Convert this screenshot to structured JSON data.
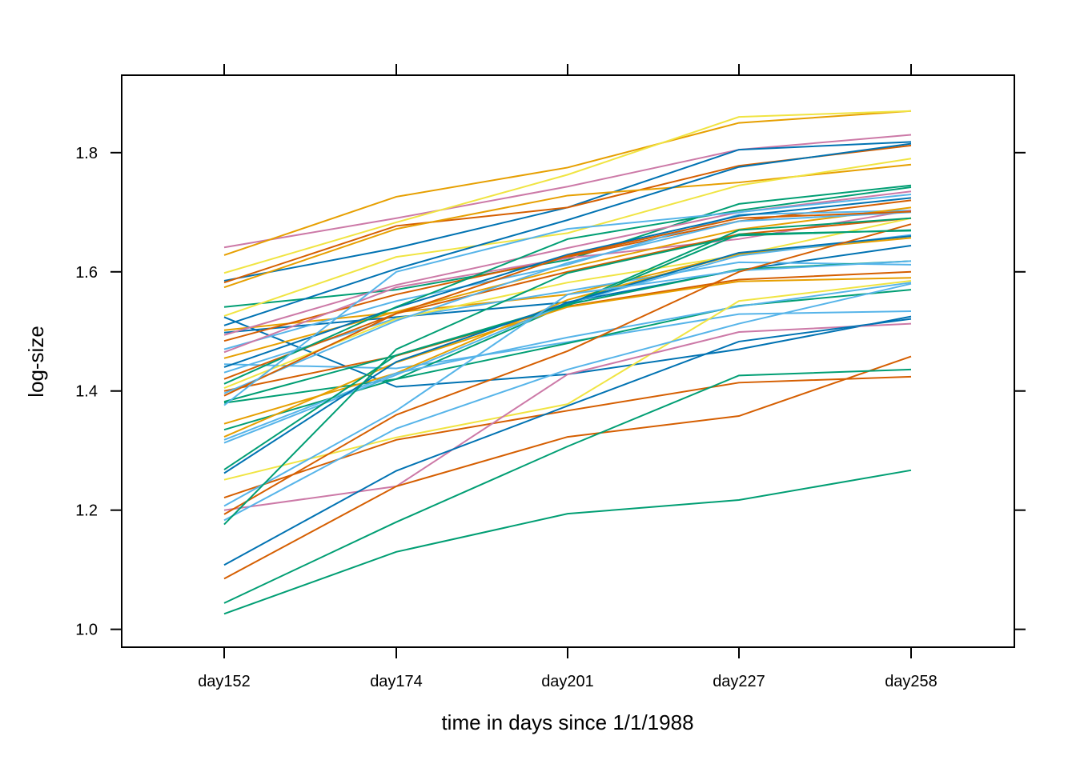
{
  "chart_data": {
    "type": "line",
    "title": "",
    "xlabel": "time in days since 1/1/1988",
    "ylabel": "log-size",
    "categories": [
      "day152",
      "day174",
      "day201",
      "day227",
      "day258"
    ],
    "ylim": [
      0.97,
      1.93
    ],
    "yticks": [
      1.0,
      1.2,
      1.4,
      1.6,
      1.8
    ],
    "ytick_labels": [
      "1.0",
      "1.2",
      "1.4",
      "1.6",
      "1.8"
    ],
    "grid": false,
    "legend": "none",
    "palette": [
      "#E69F00",
      "#56B4E9",
      "#009E73",
      "#F0E442",
      "#0072B2",
      "#D55E00",
      "#CC79A7"
    ],
    "series": [
      {
        "values": [
          1.641,
          1.69,
          1.743,
          1.805,
          1.83
        ],
        "color": "#CC79A7"
      },
      {
        "values": [
          1.628,
          1.726,
          1.775,
          1.85,
          1.87
        ],
        "color": "#E69F00"
      },
      {
        "values": [
          1.598,
          1.683,
          1.763,
          1.86,
          1.87
        ],
        "color": "#F0E442"
      },
      {
        "values": [
          1.585,
          1.64,
          1.708,
          1.805,
          1.818
        ],
        "color": "#0072B2"
      },
      {
        "values": [
          1.582,
          1.677,
          1.708,
          1.778,
          1.812
        ],
        "color": "#D55E00"
      },
      {
        "values": [
          1.574,
          1.672,
          1.728,
          1.75,
          1.78
        ],
        "color": "#E69F00"
      },
      {
        "values": [
          1.541,
          1.57,
          1.62,
          1.714,
          1.745
        ],
        "color": "#009E73"
      },
      {
        "values": [
          1.526,
          1.625,
          1.665,
          1.745,
          1.79
        ],
        "color": "#F0E442"
      },
      {
        "values": [
          1.524,
          1.407,
          1.428,
          1.47,
          1.525
        ],
        "color": "#0072B2"
      },
      {
        "values": [
          1.51,
          1.605,
          1.687,
          1.776,
          1.815
        ],
        "color": "#0072B2"
      },
      {
        "values": [
          1.502,
          1.532,
          1.562,
          1.63,
          1.66
        ],
        "color": "#E69F00"
      },
      {
        "values": [
          1.498,
          1.524,
          1.549,
          1.603,
          1.644
        ],
        "color": "#0072B2"
      },
      {
        "values": [
          1.494,
          1.578,
          1.64,
          1.7,
          1.735
        ],
        "color": "#CC79A7"
      },
      {
        "values": [
          1.484,
          1.562,
          1.625,
          1.685,
          1.72
        ],
        "color": "#D55E00"
      },
      {
        "values": [
          1.47,
          1.551,
          1.612,
          1.696,
          1.703
        ],
        "color": "#56B4E9"
      },
      {
        "values": [
          1.465,
          1.574,
          1.623,
          1.655,
          1.703
        ],
        "color": "#CC79A7"
      },
      {
        "values": [
          1.455,
          1.533,
          1.607,
          1.671,
          1.708
        ],
        "color": "#E69F00"
      },
      {
        "values": [
          1.445,
          1.438,
          1.482,
          1.529,
          1.534
        ],
        "color": "#56B4E9"
      },
      {
        "values": [
          1.44,
          1.54,
          1.629,
          1.694,
          1.724
        ],
        "color": "#0072B2"
      },
      {
        "values": [
          1.431,
          1.522,
          1.568,
          1.616,
          1.612
        ],
        "color": "#56B4E9"
      },
      {
        "values": [
          1.42,
          1.53,
          1.6,
          1.663,
          1.69
        ],
        "color": "#D55E00"
      },
      {
        "values": [
          1.412,
          1.541,
          1.655,
          1.703,
          1.742
        ],
        "color": "#009E73"
      },
      {
        "values": [
          1.405,
          1.521,
          1.582,
          1.628,
          1.69
        ],
        "color": "#F0E442"
      },
      {
        "values": [
          1.4,
          1.459,
          1.542,
          1.587,
          1.6
        ],
        "color": "#D55E00"
      },
      {
        "values": [
          1.396,
          1.518,
          1.615,
          1.685,
          1.7
        ],
        "color": "#56B4E9"
      },
      {
        "values": [
          1.392,
          1.53,
          1.627,
          1.69,
          1.701
        ],
        "color": "#D55E00"
      },
      {
        "values": [
          1.382,
          1.46,
          1.543,
          1.663,
          1.669
        ],
        "color": "#009E73"
      },
      {
        "values": [
          1.38,
          1.42,
          1.545,
          1.604,
          1.618
        ],
        "color": "#009E73"
      },
      {
        "values": [
          1.376,
          1.6,
          1.672,
          1.7,
          1.73
        ],
        "color": "#56B4E9"
      },
      {
        "values": [
          1.345,
          1.43,
          1.553,
          1.63,
          1.657
        ],
        "color": "#E69F00"
      },
      {
        "values": [
          1.335,
          1.42,
          1.48,
          1.543,
          1.57
        ],
        "color": "#009E73"
      },
      {
        "values": [
          1.323,
          1.448,
          1.541,
          1.584,
          1.59
        ],
        "color": "#E69F00"
      },
      {
        "values": [
          1.318,
          1.43,
          1.49,
          1.542,
          1.582
        ],
        "color": "#56B4E9"
      },
      {
        "values": [
          1.313,
          1.427,
          1.547,
          1.627,
          1.662
        ],
        "color": "#56B4E9"
      },
      {
        "values": [
          1.268,
          1.46,
          1.545,
          1.67,
          1.69
        ],
        "color": "#009E73"
      },
      {
        "values": [
          1.262,
          1.449,
          1.548,
          1.632,
          1.66
        ],
        "color": "#0072B2"
      },
      {
        "values": [
          1.251,
          1.322,
          1.378,
          1.551,
          1.585
        ],
        "color": "#F0E442"
      },
      {
        "values": [
          1.221,
          1.318,
          1.367,
          1.414,
          1.424
        ],
        "color": "#D55E00"
      },
      {
        "values": [
          1.207,
          1.367,
          1.562,
          1.602,
          1.618
        ],
        "color": "#56B4E9"
      },
      {
        "values": [
          1.2,
          1.24,
          1.428,
          1.499,
          1.513
        ],
        "color": "#CC79A7"
      },
      {
        "values": [
          1.193,
          1.36,
          1.467,
          1.6,
          1.68
        ],
        "color": "#D55E00"
      },
      {
        "values": [
          1.183,
          1.337,
          1.436,
          1.513,
          1.58
        ],
        "color": "#56B4E9"
      },
      {
        "values": [
          1.176,
          1.47,
          1.598,
          1.661,
          1.67
        ],
        "color": "#009E73"
      },
      {
        "values": [
          1.108,
          1.266,
          1.375,
          1.483,
          1.521
        ],
        "color": "#0072B2"
      },
      {
        "values": [
          1.085,
          1.24,
          1.323,
          1.358,
          1.458
        ],
        "color": "#D55E00"
      },
      {
        "values": [
          1.044,
          1.18,
          1.307,
          1.426,
          1.436
        ],
        "color": "#009E73"
      },
      {
        "values": [
          1.026,
          1.13,
          1.194,
          1.217,
          1.267
        ],
        "color": "#009E73"
      }
    ]
  }
}
